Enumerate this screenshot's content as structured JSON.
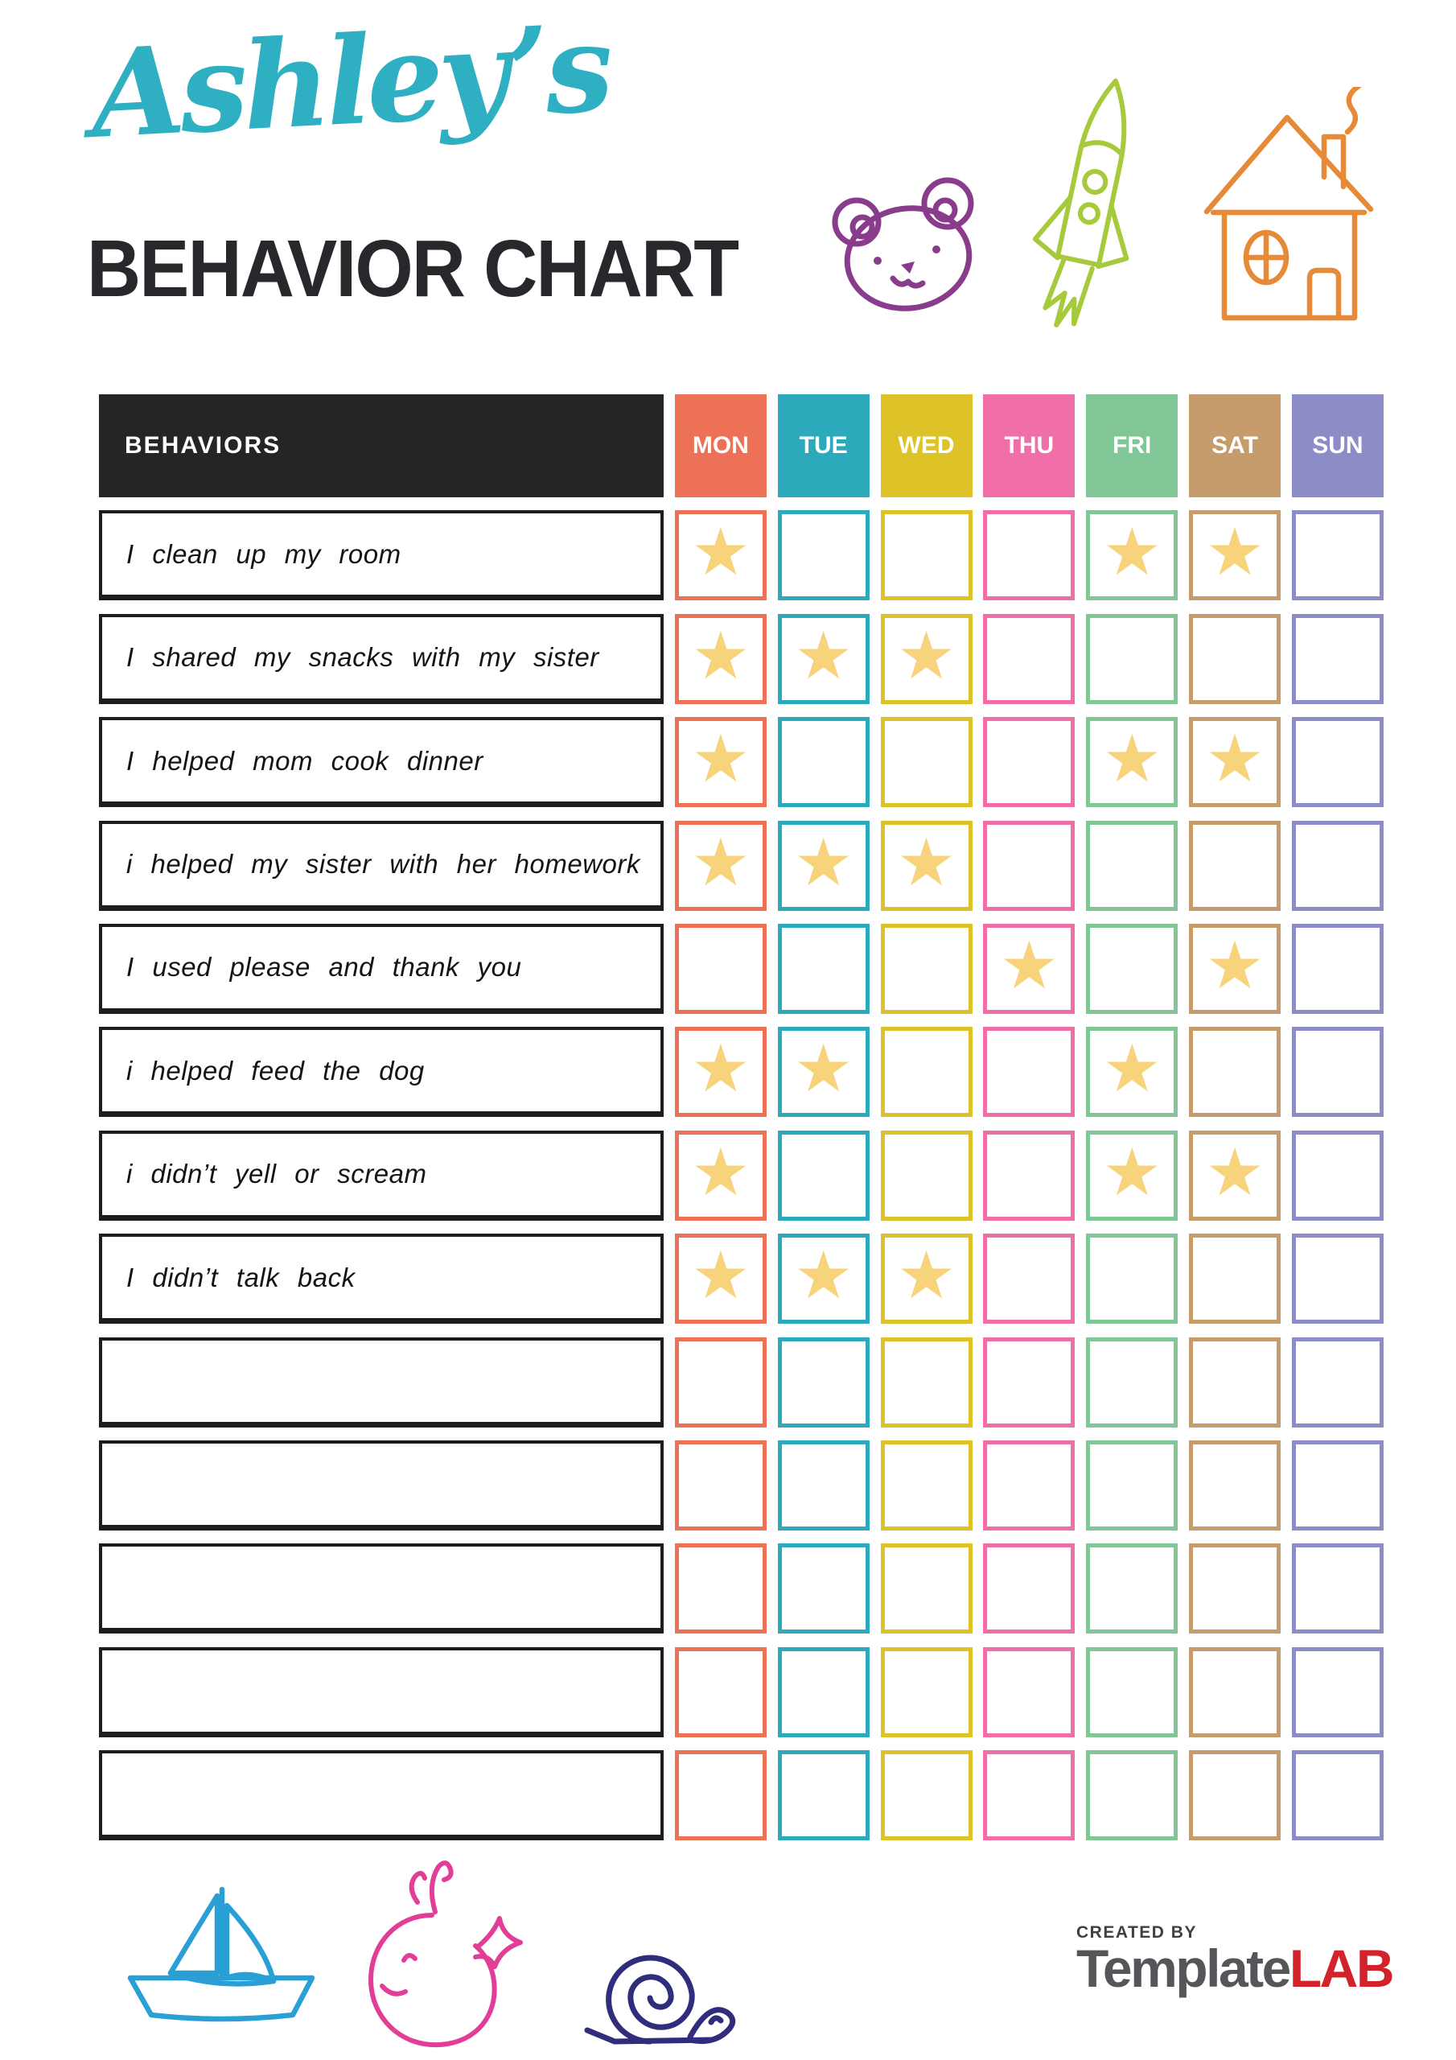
{
  "page": {
    "title_script": "Ashley’s",
    "title_main": "BEHAVIOR CHART"
  },
  "colors": {
    "title_teal": "#2eb0c2",
    "title_dark": "#26282b",
    "header_black": "#252525",
    "star_gold": "#f7d47c",
    "bear_purple": "#8a3c8c",
    "rocket_green": "#a6ca3b",
    "house_orange": "#e78a38",
    "boat_blue": "#2a9fd6",
    "whale_pink": "#e23e97",
    "snail_navy": "#2f2d7c",
    "logo_gray": "#55565a",
    "logo_red": "#d2232a"
  },
  "icons": [
    {
      "name": "bear-icon"
    },
    {
      "name": "rocket-icon"
    },
    {
      "name": "house-icon"
    },
    {
      "name": "sailboat-icon"
    },
    {
      "name": "whale-icon"
    },
    {
      "name": "snail-icon"
    }
  ],
  "table": {
    "behaviors_header": "BEHAVIORS",
    "star_glyph": "★",
    "days": [
      {
        "label": "MON",
        "color": "#ec7156"
      },
      {
        "label": "TUE",
        "color": "#2da9bc"
      },
      {
        "label": "WED",
        "color": "#ddc328"
      },
      {
        "label": "THU",
        "color": "#f06fa8"
      },
      {
        "label": "FRI",
        "color": "#80c795"
      },
      {
        "label": "SAT",
        "color": "#c69c6c"
      },
      {
        "label": "SUN",
        "color": "#8c8cc6"
      }
    ],
    "rows": [
      {
        "label": "I clean up my room",
        "stars": [
          1,
          0,
          0,
          0,
          1,
          1,
          0
        ]
      },
      {
        "label": "I shared my snacks with my sister",
        "stars": [
          1,
          1,
          1,
          0,
          0,
          0,
          0
        ]
      },
      {
        "label": "I helped mom cook dinner",
        "stars": [
          1,
          0,
          0,
          0,
          1,
          1,
          0
        ]
      },
      {
        "label": "i helped my sister with her homework",
        "stars": [
          1,
          1,
          1,
          0,
          0,
          0,
          0
        ]
      },
      {
        "label": "I used please and thank you",
        "stars": [
          0,
          0,
          0,
          1,
          0,
          1,
          0
        ]
      },
      {
        "label": "i helped feed the dog",
        "stars": [
          1,
          1,
          0,
          0,
          1,
          0,
          0
        ]
      },
      {
        "label": "i didn’t yell or scream",
        "stars": [
          1,
          0,
          0,
          0,
          1,
          1,
          0
        ]
      },
      {
        "label": "I didn’t talk back",
        "stars": [
          1,
          1,
          1,
          0,
          0,
          0,
          0
        ]
      },
      {
        "label": "",
        "stars": [
          0,
          0,
          0,
          0,
          0,
          0,
          0
        ]
      },
      {
        "label": "",
        "stars": [
          0,
          0,
          0,
          0,
          0,
          0,
          0
        ]
      },
      {
        "label": "",
        "stars": [
          0,
          0,
          0,
          0,
          0,
          0,
          0
        ]
      },
      {
        "label": "",
        "stars": [
          0,
          0,
          0,
          0,
          0,
          0,
          0
        ]
      },
      {
        "label": "",
        "stars": [
          0,
          0,
          0,
          0,
          0,
          0,
          0
        ]
      }
    ]
  },
  "footer": {
    "created_by": "CREATED BY",
    "brand_gray": "Template",
    "brand_red": "LAB"
  }
}
